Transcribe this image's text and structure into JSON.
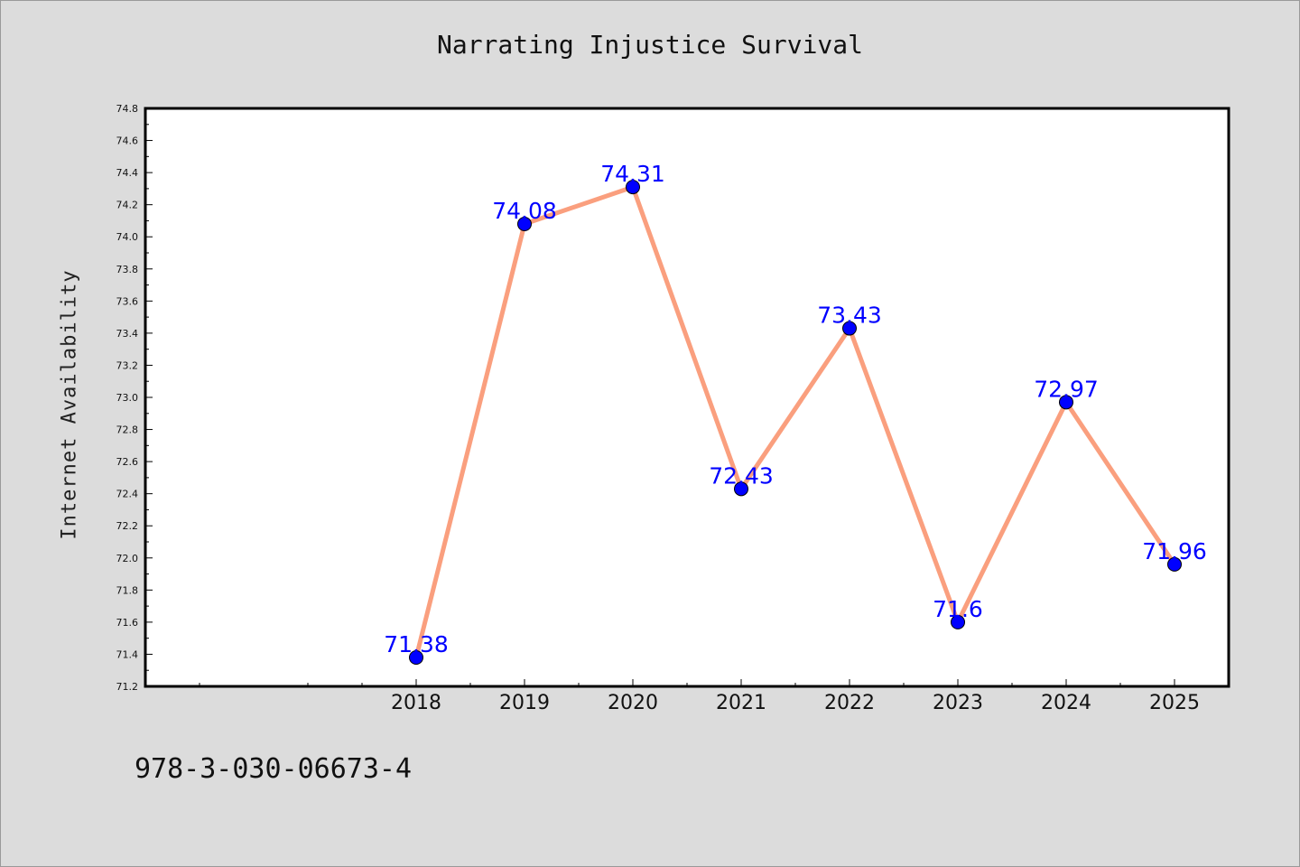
{
  "isbn": "978-3-030-06673-4",
  "colors": {
    "background": "#dcdcdc",
    "plot_background": "#ffffff",
    "line": "#fa9f7e",
    "marker": "#0000ff",
    "data_label": "#0000ff"
  },
  "chart_data": {
    "type": "line",
    "title": "Narrating Injustice Survival",
    "xlabel": "",
    "ylabel": "Internet Availability",
    "categories": [
      "2018",
      "2019",
      "2020",
      "2021",
      "2022",
      "2023",
      "2024",
      "2025"
    ],
    "series": [
      {
        "values": [
          71.38,
          74.08,
          74.31,
          72.43,
          73.43,
          71.6,
          72.97,
          71.96
        ],
        "labels": [
          "71.38",
          "74.08",
          "74.31",
          "72.43",
          "73.43",
          "71.6",
          "72.97",
          "71.96"
        ]
      }
    ],
    "ylim": [
      71.2,
      74.8
    ],
    "yticks": [
      "71.2",
      "71.4",
      "71.6",
      "71.8",
      "72.0",
      "72.2",
      "72.4",
      "72.6",
      "72.8",
      "73.0",
      "73.2",
      "73.4",
      "73.6",
      "73.8",
      "74.0",
      "74.2",
      "74.4",
      "74.6",
      "74.8"
    ],
    "grid": false,
    "legend": "none"
  }
}
